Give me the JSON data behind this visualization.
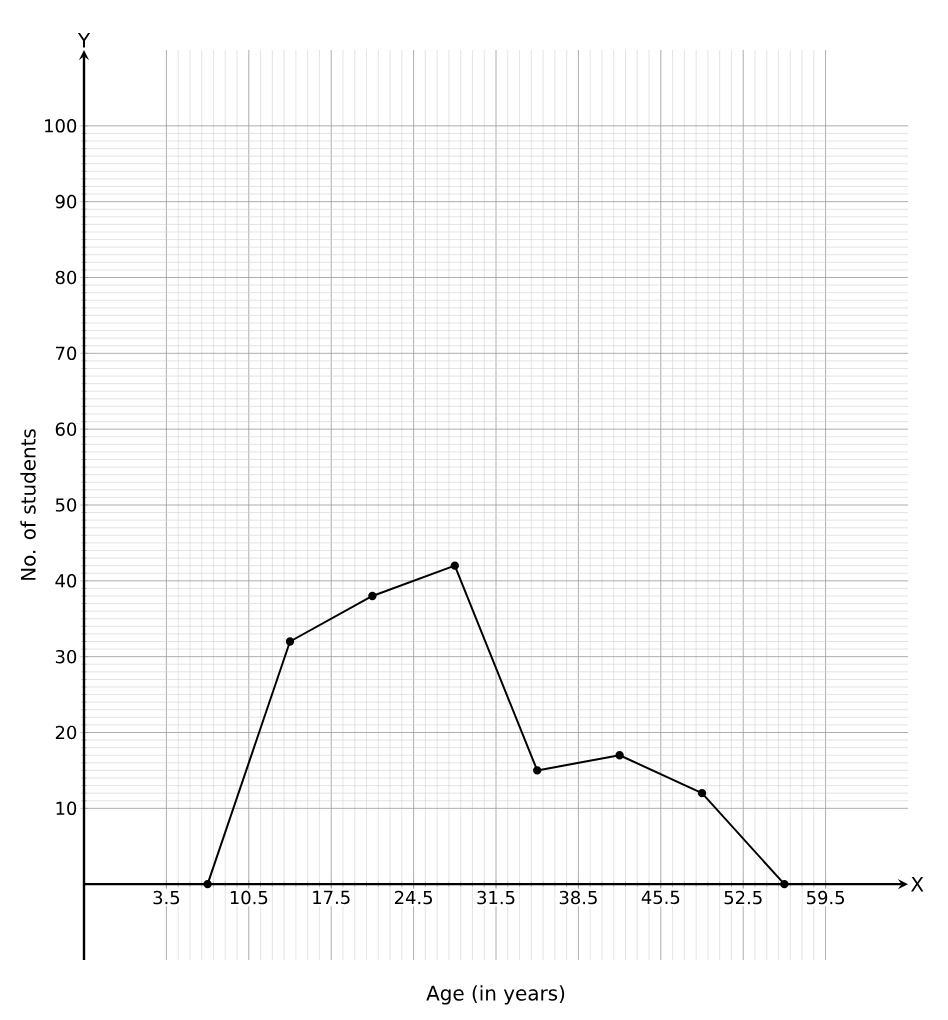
{
  "chart_data": {
    "type": "line",
    "xlabel": "Age (in years)",
    "ylabel": "No. of students",
    "x": [
      7,
      14,
      21,
      28,
      35,
      42,
      49,
      56
    ],
    "values": [
      0,
      32,
      38,
      42,
      15,
      17,
      12,
      0
    ],
    "color": "#000000",
    "marker": "circle",
    "line_style": "solid",
    "grid": true,
    "xlim": [
      -3.5,
      66.5
    ],
    "ylim": [
      -10,
      110
    ],
    "xticks": [
      3.5,
      10.5,
      17.5,
      24.5,
      31.5,
      38.5,
      45.5,
      52.5,
      59.5
    ],
    "yticks": [
      10,
      20,
      30,
      40,
      50,
      60,
      70,
      80,
      90,
      100
    ],
    "annotations": [
      "X",
      "Y"
    ]
  }
}
